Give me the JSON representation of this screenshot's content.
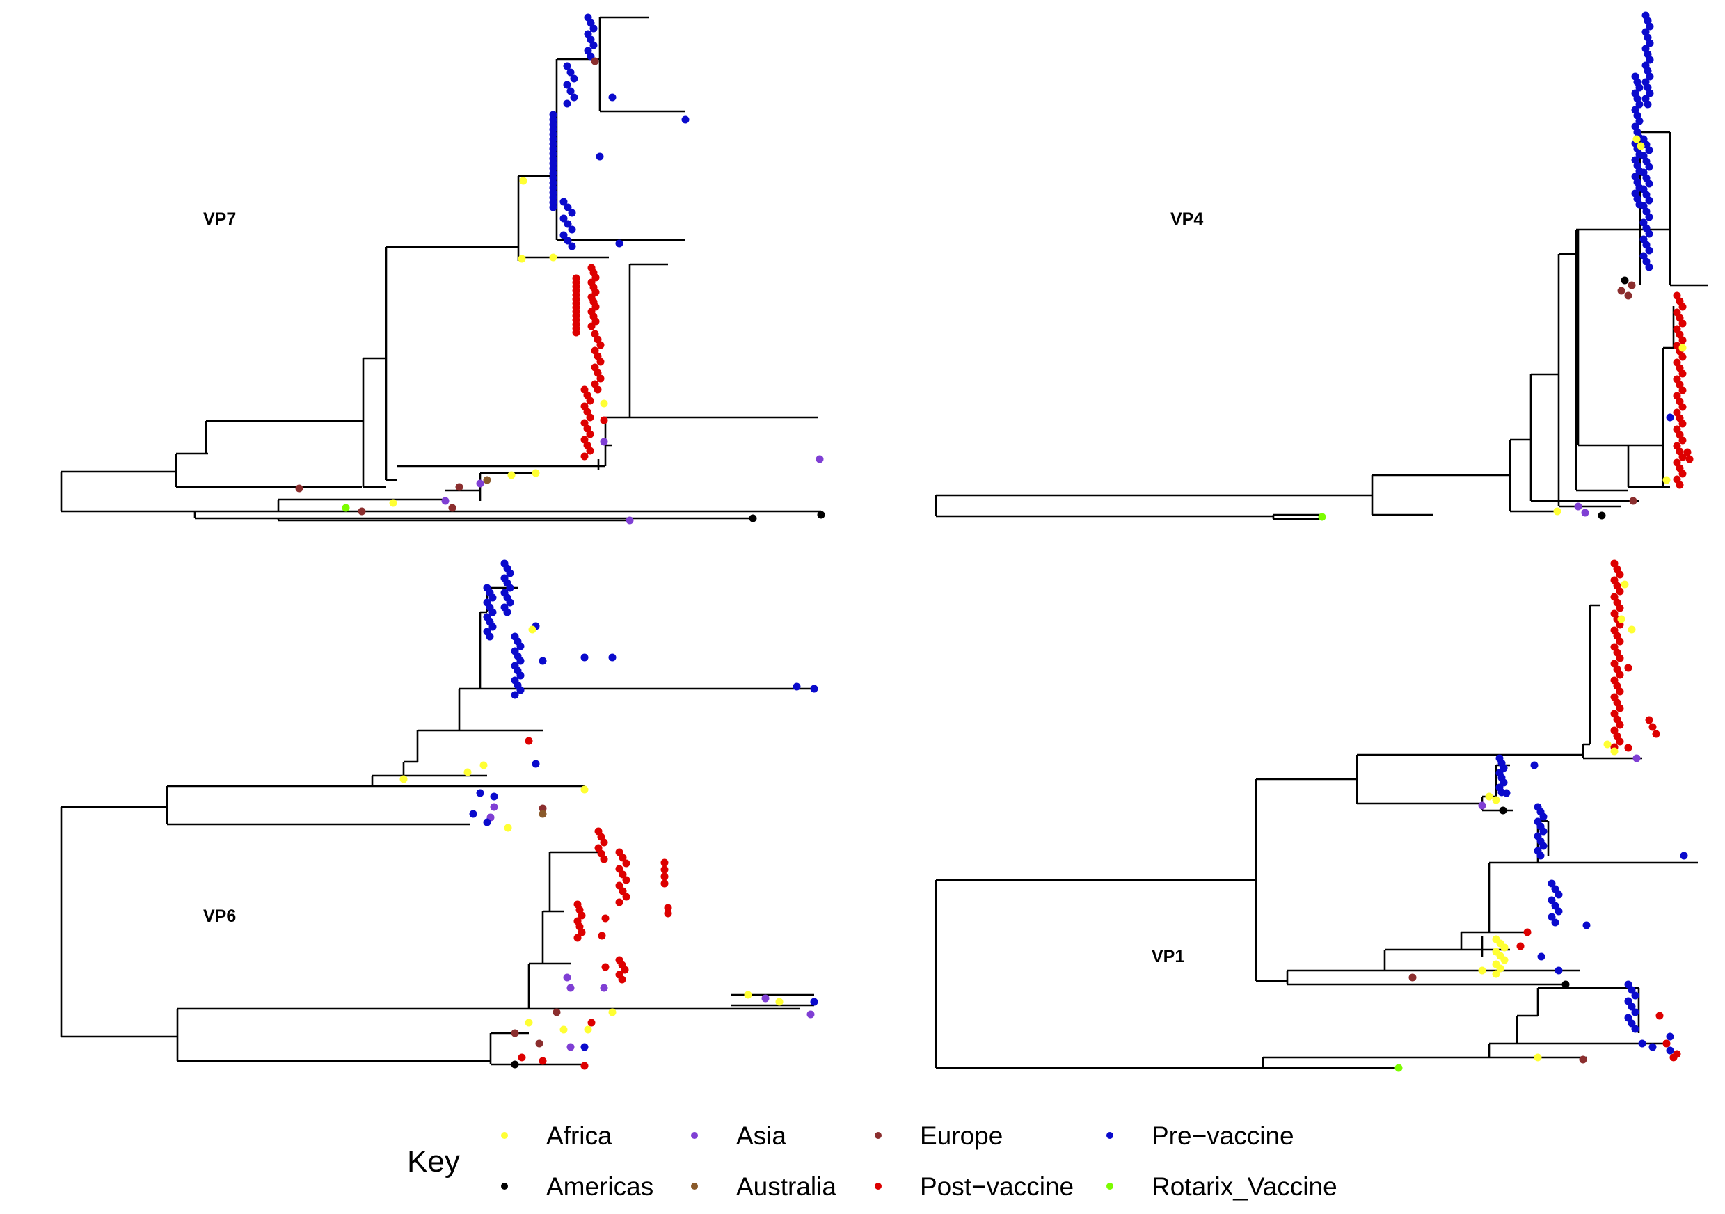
{
  "panels": [
    {
      "id": "vp7",
      "label": "VP7"
    },
    {
      "id": "vp4",
      "label": "VP4"
    },
    {
      "id": "vp6",
      "label": "VP6"
    },
    {
      "id": "vp1",
      "label": "VP1"
    }
  ],
  "legend": {
    "title": "Key",
    "items": [
      {
        "label": "Africa",
        "color": "#ffff33"
      },
      {
        "label": "Asia",
        "color": "#7f3fd4"
      },
      {
        "label": "Europe",
        "color": "#8b2e2e"
      },
      {
        "label": "Pre−vaccine",
        "color": "#0a0acc"
      },
      {
        "label": "Americas",
        "color": "#000000"
      },
      {
        "label": "Australia",
        "color": "#8a5a2a"
      },
      {
        "label": "Post−vaccine",
        "color": "#dd0000"
      },
      {
        "label": "Rotarix_Vaccine",
        "color": "#7cfc00"
      }
    ]
  }
}
